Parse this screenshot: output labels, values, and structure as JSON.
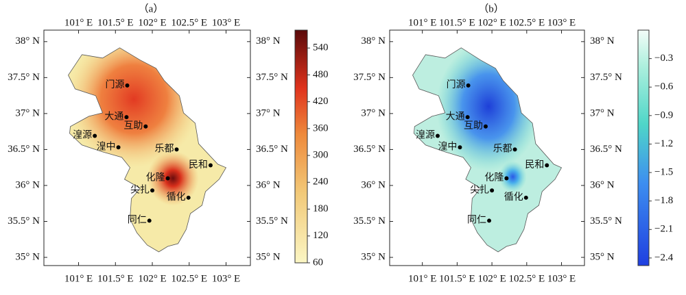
{
  "panels": [
    {
      "label": "（a）",
      "xlim": [
        100.53,
        103.33
      ],
      "ylim": [
        34.886,
        38.16
      ],
      "colorbar": {
        "lim": [
          60,
          580
        ],
        "ticks": [
          60,
          120,
          180,
          240,
          300,
          360,
          420,
          480,
          540
        ]
      }
    },
    {
      "label": "（b）",
      "xlim": [
        100.53,
        103.33
      ],
      "ylim": [
        34.886,
        38.16
      ],
      "colorbar": {
        "lim": [
          -2.48,
          0
        ],
        "ticks": [
          {
            "value": -0.3,
            "label": "−0.3"
          },
          {
            "value": -0.6,
            "label": "−0.6"
          },
          {
            "value": -0.9,
            "label": "−0.9"
          },
          {
            "value": -1.2,
            "label": "−1.2"
          },
          {
            "value": -1.5,
            "label": "−1.5"
          },
          {
            "value": -1.8,
            "label": "−1.8"
          },
          {
            "value": -2.1,
            "label": "−2.1"
          },
          {
            "value": -2.4,
            "label": "−2.4"
          }
        ]
      }
    }
  ],
  "xticks": [
    {
      "value": 101,
      "label": "101° E"
    },
    {
      "value": 101.5,
      "label": "101.5° E"
    },
    {
      "value": 102,
      "label": "102° E"
    },
    {
      "value": 102.5,
      "label": "102.5° E"
    },
    {
      "value": 103,
      "label": "103° E"
    }
  ],
  "yticks": [
    {
      "value": 35,
      "label": "35° N"
    },
    {
      "value": 35.5,
      "label": "35.5° N"
    },
    {
      "value": 36,
      "label": "36° N"
    },
    {
      "value": 36.5,
      "label": "36.5° N"
    },
    {
      "value": 37,
      "label": "37° N"
    },
    {
      "value": 37.5,
      "label": "37.5° N"
    },
    {
      "value": 38,
      "label": "38° N"
    }
  ],
  "cities": [
    {
      "name": "门源",
      "lon": 101.66,
      "lat": 37.39
    },
    {
      "name": "大通",
      "lon": 101.65,
      "lat": 36.95
    },
    {
      "name": "互助",
      "lon": 101.91,
      "lat": 36.82
    },
    {
      "name": "湟源",
      "lon": 101.22,
      "lat": 36.69
    },
    {
      "name": "湟中",
      "lon": 101.54,
      "lat": 36.53
    },
    {
      "name": "乐都",
      "lon": 102.33,
      "lat": 36.5
    },
    {
      "name": "民和",
      "lon": 102.79,
      "lat": 36.28
    },
    {
      "name": "化隆",
      "lon": 102.21,
      "lat": 36.1
    },
    {
      "name": "尖扎",
      "lon": 102.0,
      "lat": 35.93
    },
    {
      "name": "循化",
      "lon": 102.49,
      "lat": 35.83
    },
    {
      "name": "同仁",
      "lon": 101.96,
      "lat": 35.51
    }
  ]
}
